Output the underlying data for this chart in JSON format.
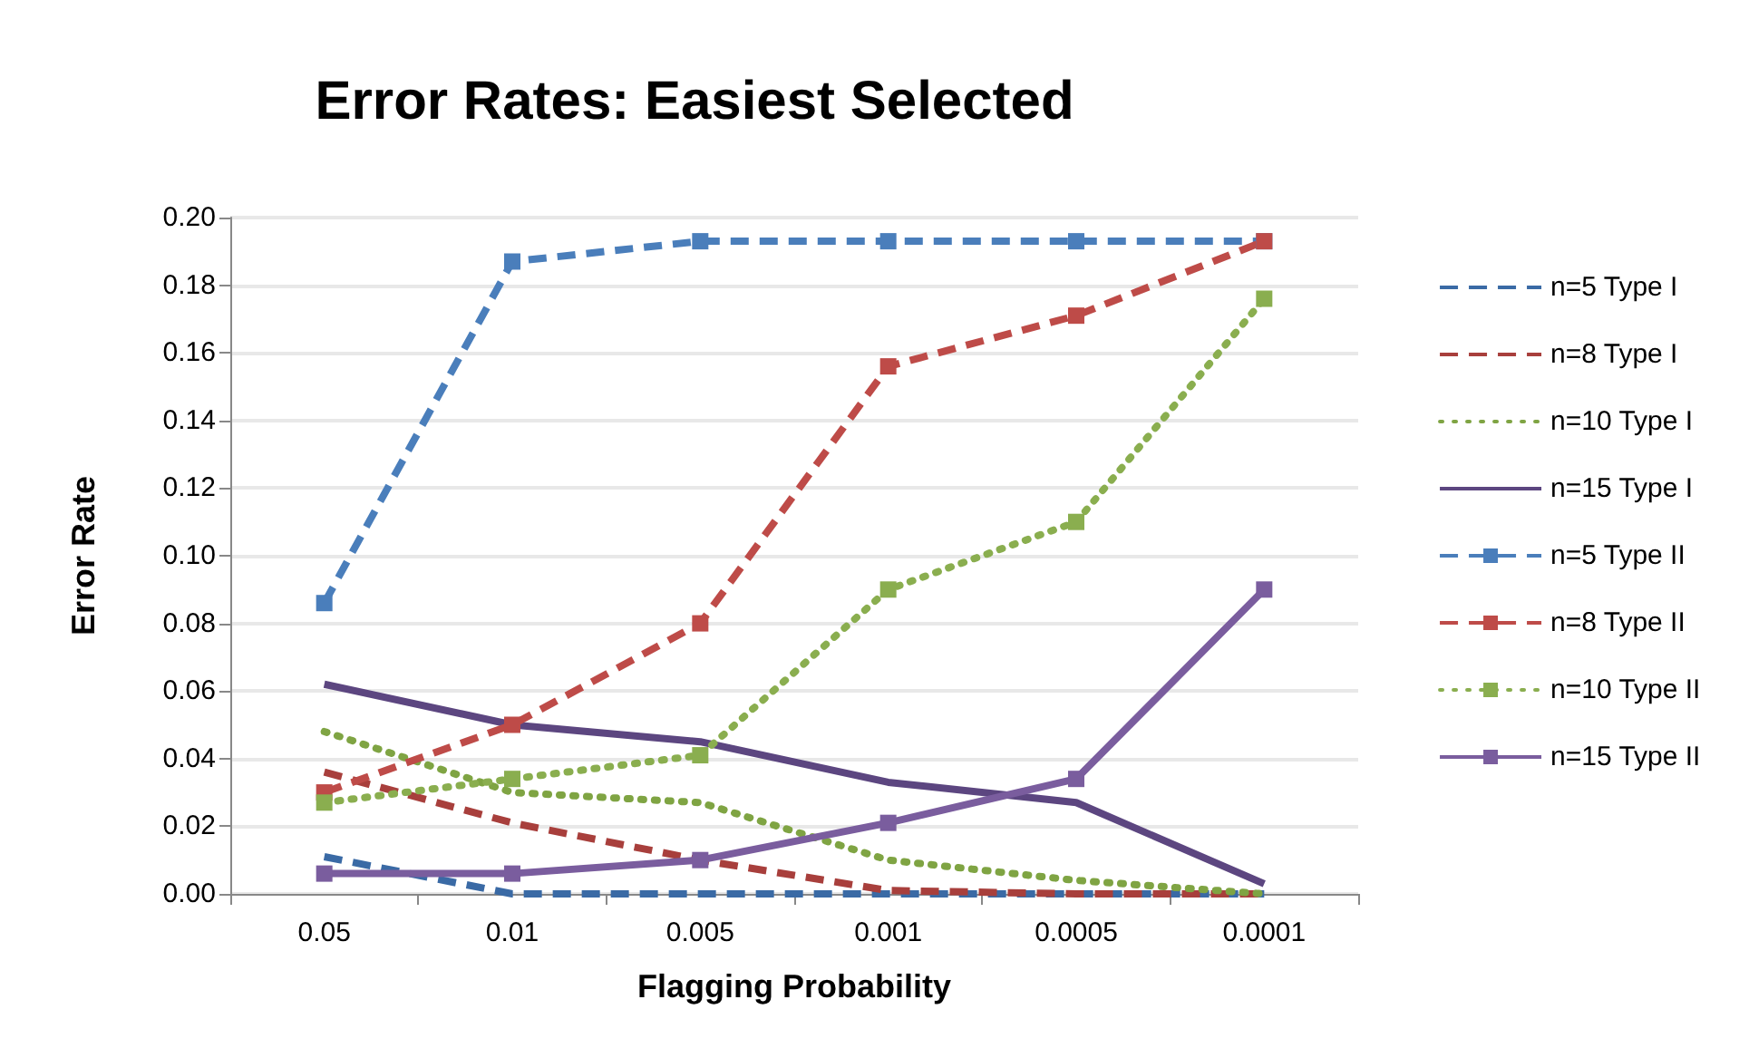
{
  "chart_data": {
    "type": "line",
    "title": "Error Rates: Easiest Selected",
    "xlabel": "Flagging Probability",
    "ylabel": "Error Rate",
    "categories": [
      "0.05",
      "0.01",
      "0.005",
      "0.001",
      "0.0005",
      "0.0001"
    ],
    "series": [
      {
        "name": "n=5 Type I",
        "color": "#3a6aa5",
        "line_style": "dashed",
        "marker": "none",
        "values": [
          0.011,
          0,
          0,
          0,
          0,
          0
        ]
      },
      {
        "name": "n=8 Type I",
        "color": "#a83f3c",
        "line_style": "dashed",
        "marker": "none",
        "values": [
          0.036,
          0.021,
          0.01,
          0.001,
          0,
          0
        ]
      },
      {
        "name": "n=10 Type I",
        "color": "#7fa443",
        "line_style": "dotted",
        "marker": "none",
        "values": [
          0.048,
          0.03,
          0.027,
          0.01,
          0.004,
          0
        ]
      },
      {
        "name": "n=15 Type I",
        "color": "#5c4680",
        "line_style": "solid",
        "marker": "none",
        "values": [
          0.062,
          0.05,
          0.045,
          0.033,
          0.027,
          0.003
        ]
      },
      {
        "name": "n=5 Type II",
        "color": "#4a7ebb",
        "line_style": "dashed",
        "marker": "square",
        "values": [
          0.086,
          0.187,
          0.193,
          0.193,
          0.193,
          0.193
        ]
      },
      {
        "name": "n=8 Type II",
        "color": "#be4b48",
        "line_style": "dashed",
        "marker": "square",
        "values": [
          0.03,
          0.05,
          0.08,
          0.156,
          0.171,
          0.193
        ]
      },
      {
        "name": "n=10 Type II",
        "color": "#8aae4f",
        "line_style": "dotted",
        "marker": "square",
        "values": [
          0.027,
          0.034,
          0.041,
          0.09,
          0.11,
          0.176
        ]
      },
      {
        "name": "n=15 Type II",
        "color": "#7a5d9e",
        "line_style": "solid",
        "marker": "square",
        "values": [
          0.006,
          0.006,
          0.01,
          0.021,
          0.034,
          0.09
        ]
      }
    ],
    "ylim": [
      0,
      0.2
    ],
    "yticks": [
      {
        "value": 0,
        "label": "0.00"
      },
      {
        "value": 0.02,
        "label": "0.02"
      },
      {
        "value": 0.04,
        "label": "0.04"
      },
      {
        "value": 0.06,
        "label": "0.06"
      },
      {
        "value": 0.08,
        "label": "0.08"
      },
      {
        "value": 0.1,
        "label": "0.10"
      },
      {
        "value": 0.12,
        "label": "0.12"
      },
      {
        "value": 0.14,
        "label": "0.14"
      },
      {
        "value": 0.16,
        "label": "0.16"
      },
      {
        "value": 0.18,
        "label": "0.18"
      },
      {
        "value": 0.2,
        "label": "0.20"
      }
    ],
    "grid": "y",
    "legend": "right"
  }
}
